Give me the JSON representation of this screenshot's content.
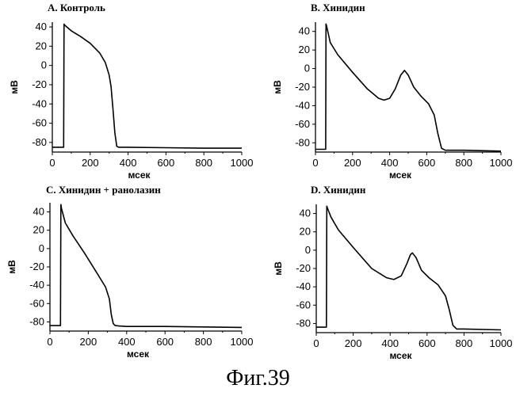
{
  "figure_caption": "Фиг.39",
  "chart_data": [
    {
      "type": "line",
      "title": "A. Контроль",
      "xlabel": "мсек",
      "ylabel": "мВ",
      "xlim": [
        0,
        1000
      ],
      "ylim": [
        -90,
        45
      ],
      "xticks": [
        "0",
        "200",
        "400",
        "600",
        "800",
        "1000"
      ],
      "yticks": [
        "40",
        "20",
        "0",
        "-20",
        "-40",
        "-60",
        "-80"
      ],
      "grid": false,
      "series": [
        {
          "x": [
            0,
            60,
            62,
            65,
            100,
            150,
            200,
            250,
            280,
            300,
            310,
            320,
            330,
            340,
            350,
            400,
            600,
            800,
            1000
          ],
          "y": [
            -85,
            -85,
            43,
            42,
            36,
            30,
            23,
            13,
            3,
            -10,
            -22,
            -45,
            -70,
            -84,
            -85,
            -85,
            -85.5,
            -86,
            -86
          ]
        }
      ]
    },
    {
      "type": "line",
      "title": "B. Хинидин",
      "xlabel": "мсек",
      "ylabel": "мВ",
      "xlim": [
        0,
        1000
      ],
      "ylim": [
        -90,
        50
      ],
      "xticks": [
        "0",
        "200",
        "400",
        "600",
        "800",
        "1000"
      ],
      "yticks": [
        "40",
        "20",
        "0",
        "-20",
        "-40",
        "-60",
        "-80"
      ],
      "grid": false,
      "series": [
        {
          "x": [
            0,
            55,
            57,
            60,
            80,
            120,
            200,
            280,
            340,
            370,
            400,
            430,
            460,
            480,
            500,
            530,
            570,
            610,
            640,
            660,
            680,
            700,
            800,
            1000
          ],
          "y": [
            -87,
            -87,
            48,
            46,
            28,
            15,
            -4,
            -22,
            -32,
            -34,
            -32,
            -22,
            -7,
            -2,
            -7,
            -20,
            -30,
            -38,
            -50,
            -70,
            -86,
            -88,
            -88,
            -89
          ]
        }
      ]
    },
    {
      "type": "line",
      "title": "C. Хинидин + ранолазин",
      "xlabel": "мсек",
      "ylabel": "мВ",
      "xlim": [
        0,
        1000
      ],
      "ylim": [
        -90,
        50
      ],
      "xticks": [
        "0",
        "200",
        "400",
        "600",
        "800",
        "1000"
      ],
      "yticks": [
        "40",
        "20",
        "0",
        "-20",
        "-40",
        "-60",
        "-80"
      ],
      "grid": false,
      "series": [
        {
          "x": [
            0,
            55,
            57,
            60,
            80,
            120,
            180,
            240,
            290,
            310,
            320,
            330,
            340,
            360,
            400,
            600,
            800,
            1000
          ],
          "y": [
            -84,
            -84,
            48,
            44,
            28,
            14,
            -5,
            -25,
            -42,
            -55,
            -72,
            -82,
            -84,
            -84.5,
            -85,
            -85,
            -85.5,
            -86
          ]
        }
      ]
    },
    {
      "type": "line",
      "title": "D. Хинидин",
      "xlabel": "мсек",
      "ylabel": "мВ",
      "xlim": [
        0,
        1000
      ],
      "ylim": [
        -90,
        50
      ],
      "xticks": [
        "0",
        "200",
        "400",
        "600",
        "800",
        "1000"
      ],
      "yticks": [
        "40",
        "20",
        "0",
        "-20",
        "-40",
        "-60",
        "-80"
      ],
      "grid": false,
      "series": [
        {
          "x": [
            0,
            55,
            57,
            60,
            80,
            120,
            200,
            300,
            380,
            420,
            460,
            490,
            510,
            520,
            540,
            570,
            610,
            660,
            700,
            720,
            740,
            760,
            800,
            1000
          ],
          "y": [
            -84,
            -84,
            48,
            46,
            36,
            22,
            3,
            -20,
            -30,
            -32,
            -28,
            -15,
            -5,
            -3,
            -8,
            -22,
            -30,
            -38,
            -50,
            -65,
            -82,
            -86,
            -86,
            -87
          ]
        }
      ]
    }
  ]
}
